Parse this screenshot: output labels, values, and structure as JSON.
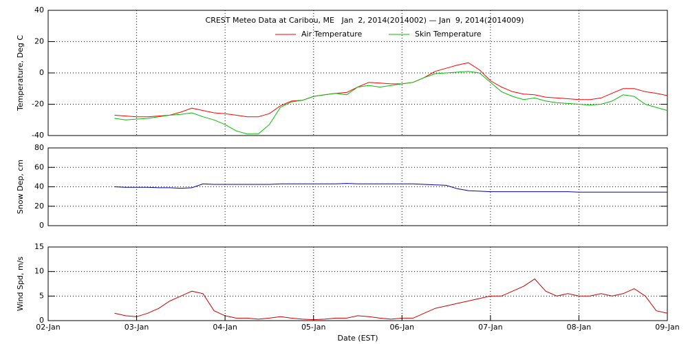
{
  "chart_data": [
    {
      "type": "line",
      "title": "CREST Meteo Data at Caribou, ME   Jan  2, 2014(2014002) — Jan  9, 2014(2014009)",
      "ylabel": "Temperature, Deg C",
      "x": [
        "2014-01-02T18:00",
        "2014-01-02T21:00",
        "2014-01-03T00:00",
        "2014-01-03T03:00",
        "2014-01-03T06:00",
        "2014-01-03T09:00",
        "2014-01-03T12:00",
        "2014-01-03T15:00",
        "2014-01-03T18:00",
        "2014-01-03T21:00",
        "2014-01-04T00:00",
        "2014-01-04T03:00",
        "2014-01-04T06:00",
        "2014-01-04T09:00",
        "2014-01-04T12:00",
        "2014-01-04T15:00",
        "2014-01-04T18:00",
        "2014-01-04T21:00",
        "2014-01-05T00:00",
        "2014-01-05T03:00",
        "2014-01-05T06:00",
        "2014-01-05T09:00",
        "2014-01-05T12:00",
        "2014-01-05T15:00",
        "2014-01-05T18:00",
        "2014-01-05T21:00",
        "2014-01-06T00:00",
        "2014-01-06T03:00",
        "2014-01-06T06:00",
        "2014-01-06T09:00",
        "2014-01-06T12:00",
        "2014-01-06T15:00",
        "2014-01-06T18:00",
        "2014-01-06T21:00",
        "2014-01-07T00:00",
        "2014-01-07T03:00",
        "2014-01-07T06:00",
        "2014-01-07T09:00",
        "2014-01-07T12:00",
        "2014-01-07T15:00",
        "2014-01-07T18:00",
        "2014-01-07T21:00",
        "2014-01-08T00:00",
        "2014-01-08T03:00",
        "2014-01-08T06:00",
        "2014-01-08T09:00",
        "2014-01-08T12:00",
        "2014-01-08T15:00",
        "2014-01-08T18:00",
        "2014-01-08T21:00",
        "2014-01-09T00:00"
      ],
      "series": [
        {
          "name": "Air Temperature",
          "color": "#ff0000",
          "values": [
            -27,
            -27.5,
            -28,
            -28,
            -27.5,
            -27,
            -25,
            -22.5,
            -24,
            -25.5,
            -26,
            -27,
            -28,
            -28,
            -26,
            -21,
            -18,
            -17.5,
            -15,
            -14,
            -13,
            -12.5,
            -9,
            -6,
            -6.5,
            -7,
            -7,
            -6,
            -3,
            1,
            3,
            5,
            6.5,
            2,
            -5,
            -9,
            -12,
            -13.5,
            -14,
            -15.5,
            -16,
            -16.5,
            -17,
            -17,
            -16,
            -13,
            -10,
            -10,
            -12,
            -13,
            -14.5
          ]
        },
        {
          "name": "Skin Temperature",
          "color": "#00c000",
          "values": [
            -29,
            -30,
            -29.5,
            -29,
            -28,
            -27,
            -26.5,
            -25.5,
            -28,
            -30,
            -33,
            -37,
            -39,
            -39,
            -33,
            -22,
            -18.5,
            -17.5,
            -15,
            -14,
            -13,
            -14,
            -9,
            -8,
            -9,
            -8,
            -7,
            -6,
            -3,
            -0.5,
            0,
            0.5,
            1,
            0,
            -6,
            -12,
            -15,
            -17,
            -16,
            -18,
            -19,
            -19.5,
            -20,
            -20.5,
            -20,
            -18,
            -14,
            -15,
            -20,
            -22,
            -24
          ]
        }
      ],
      "xlim": [
        "2014-01-02T00:00",
        "2014-01-09T00:00"
      ],
      "ylim": [
        -40,
        40
      ],
      "yticks": [
        -40,
        -20,
        0,
        20,
        40
      ],
      "grid": true,
      "legend": "top"
    },
    {
      "type": "line",
      "ylabel": "Snow Dep, cm",
      "x": [
        "2014-01-02T18:00",
        "2014-01-02T21:00",
        "2014-01-03T00:00",
        "2014-01-03T03:00",
        "2014-01-03T06:00",
        "2014-01-03T09:00",
        "2014-01-03T12:00",
        "2014-01-03T15:00",
        "2014-01-03T18:00",
        "2014-01-03T21:00",
        "2014-01-04T00:00",
        "2014-01-04T03:00",
        "2014-01-04T06:00",
        "2014-01-04T09:00",
        "2014-01-04T12:00",
        "2014-01-04T15:00",
        "2014-01-04T18:00",
        "2014-01-04T21:00",
        "2014-01-05T00:00",
        "2014-01-05T03:00",
        "2014-01-05T06:00",
        "2014-01-05T09:00",
        "2014-01-05T12:00",
        "2014-01-05T15:00",
        "2014-01-05T18:00",
        "2014-01-05T21:00",
        "2014-01-06T00:00",
        "2014-01-06T03:00",
        "2014-01-06T06:00",
        "2014-01-06T09:00",
        "2014-01-06T12:00",
        "2014-01-06T15:00",
        "2014-01-06T18:00",
        "2014-01-06T21:00",
        "2014-01-07T00:00",
        "2014-01-07T03:00",
        "2014-01-07T06:00",
        "2014-01-07T09:00",
        "2014-01-07T12:00",
        "2014-01-07T15:00",
        "2014-01-07T18:00",
        "2014-01-07T21:00",
        "2014-01-08T00:00",
        "2014-01-08T03:00",
        "2014-01-08T06:00",
        "2014-01-08T09:00",
        "2014-01-08T12:00",
        "2014-01-08T15:00",
        "2014-01-08T18:00",
        "2014-01-08T21:00",
        "2014-01-09T00:00"
      ],
      "series": [
        {
          "color": "#0000a0",
          "values": [
            40,
            39.5,
            39.5,
            39.5,
            39,
            39,
            38.5,
            39,
            43,
            42.5,
            42.5,
            42.5,
            42.5,
            42.5,
            42.5,
            43,
            43,
            43,
            43,
            43,
            43,
            43.5,
            43,
            43,
            43,
            43,
            43,
            43,
            42.5,
            42,
            41.5,
            38,
            36,
            35.5,
            35,
            35,
            35,
            35,
            35,
            35,
            35,
            35,
            34.5,
            34.5,
            34.5,
            34.5,
            34.5,
            34.5,
            34.5,
            34.5,
            34.5
          ]
        }
      ],
      "xlim": [
        "2014-01-02T00:00",
        "2014-01-09T00:00"
      ],
      "ylim": [
        0,
        80
      ],
      "yticks": [
        0,
        20,
        40,
        60,
        80
      ],
      "grid": true
    },
    {
      "type": "line",
      "ylabel": "Wind Spd, m/s",
      "xlabel": "Date (EST)",
      "x": [
        "2014-01-02T18:00",
        "2014-01-02T21:00",
        "2014-01-03T00:00",
        "2014-01-03T03:00",
        "2014-01-03T06:00",
        "2014-01-03T09:00",
        "2014-01-03T12:00",
        "2014-01-03T15:00",
        "2014-01-03T18:00",
        "2014-01-03T21:00",
        "2014-01-04T00:00",
        "2014-01-04T03:00",
        "2014-01-04T06:00",
        "2014-01-04T09:00",
        "2014-01-04T12:00",
        "2014-01-04T15:00",
        "2014-01-04T18:00",
        "2014-01-04T21:00",
        "2014-01-05T00:00",
        "2014-01-05T03:00",
        "2014-01-05T06:00",
        "2014-01-05T09:00",
        "2014-01-05T12:00",
        "2014-01-05T15:00",
        "2014-01-05T18:00",
        "2014-01-05T21:00",
        "2014-01-06T00:00",
        "2014-01-06T03:00",
        "2014-01-06T06:00",
        "2014-01-06T09:00",
        "2014-01-06T12:00",
        "2014-01-06T15:00",
        "2014-01-06T18:00",
        "2014-01-06T21:00",
        "2014-01-07T00:00",
        "2014-01-07T03:00",
        "2014-01-07T06:00",
        "2014-01-07T09:00",
        "2014-01-07T12:00",
        "2014-01-07T15:00",
        "2014-01-07T18:00",
        "2014-01-07T21:00",
        "2014-01-08T00:00",
        "2014-01-08T03:00",
        "2014-01-08T06:00",
        "2014-01-08T09:00",
        "2014-01-08T12:00",
        "2014-01-08T15:00",
        "2014-01-08T18:00",
        "2014-01-08T21:00",
        "2014-01-09T00:00"
      ],
      "series": [
        {
          "color": "#cc0000",
          "values": [
            1.5,
            1,
            0.8,
            1.5,
            2.5,
            4,
            5,
            6,
            5.5,
            2,
            1,
            0.5,
            0.5,
            0.3,
            0.5,
            0.8,
            0.5,
            0.3,
            0.2,
            0.3,
            0.5,
            0.5,
            1,
            0.8,
            0.5,
            0.3,
            0.5,
            0.5,
            1.5,
            2.5,
            3,
            3.5,
            4,
            4.5,
            5,
            5,
            6,
            7,
            8.5,
            6,
            5,
            5.5,
            5,
            5,
            5.5,
            5,
            5.5,
            6.5,
            5,
            2,
            1.5
          ]
        }
      ],
      "xlim": [
        "2014-01-02T00:00",
        "2014-01-09T00:00"
      ],
      "ylim": [
        0,
        15
      ],
      "yticks": [
        0,
        5,
        10,
        15
      ],
      "grid": true,
      "xticks": [
        {
          "value": "2014-01-02T00:00",
          "label": "02-Jan"
        },
        {
          "value": "2014-01-03T00:00",
          "label": "03-Jan"
        },
        {
          "value": "2014-01-04T00:00",
          "label": "04-Jan"
        },
        {
          "value": "2014-01-05T00:00",
          "label": "05-Jan"
        },
        {
          "value": "2014-01-06T00:00",
          "label": "06-Jan"
        },
        {
          "value": "2014-01-07T00:00",
          "label": "07-Jan"
        },
        {
          "value": "2014-01-08T00:00",
          "label": "08-Jan"
        },
        {
          "value": "2014-01-09T00:00",
          "label": "09-Jan"
        }
      ]
    }
  ]
}
